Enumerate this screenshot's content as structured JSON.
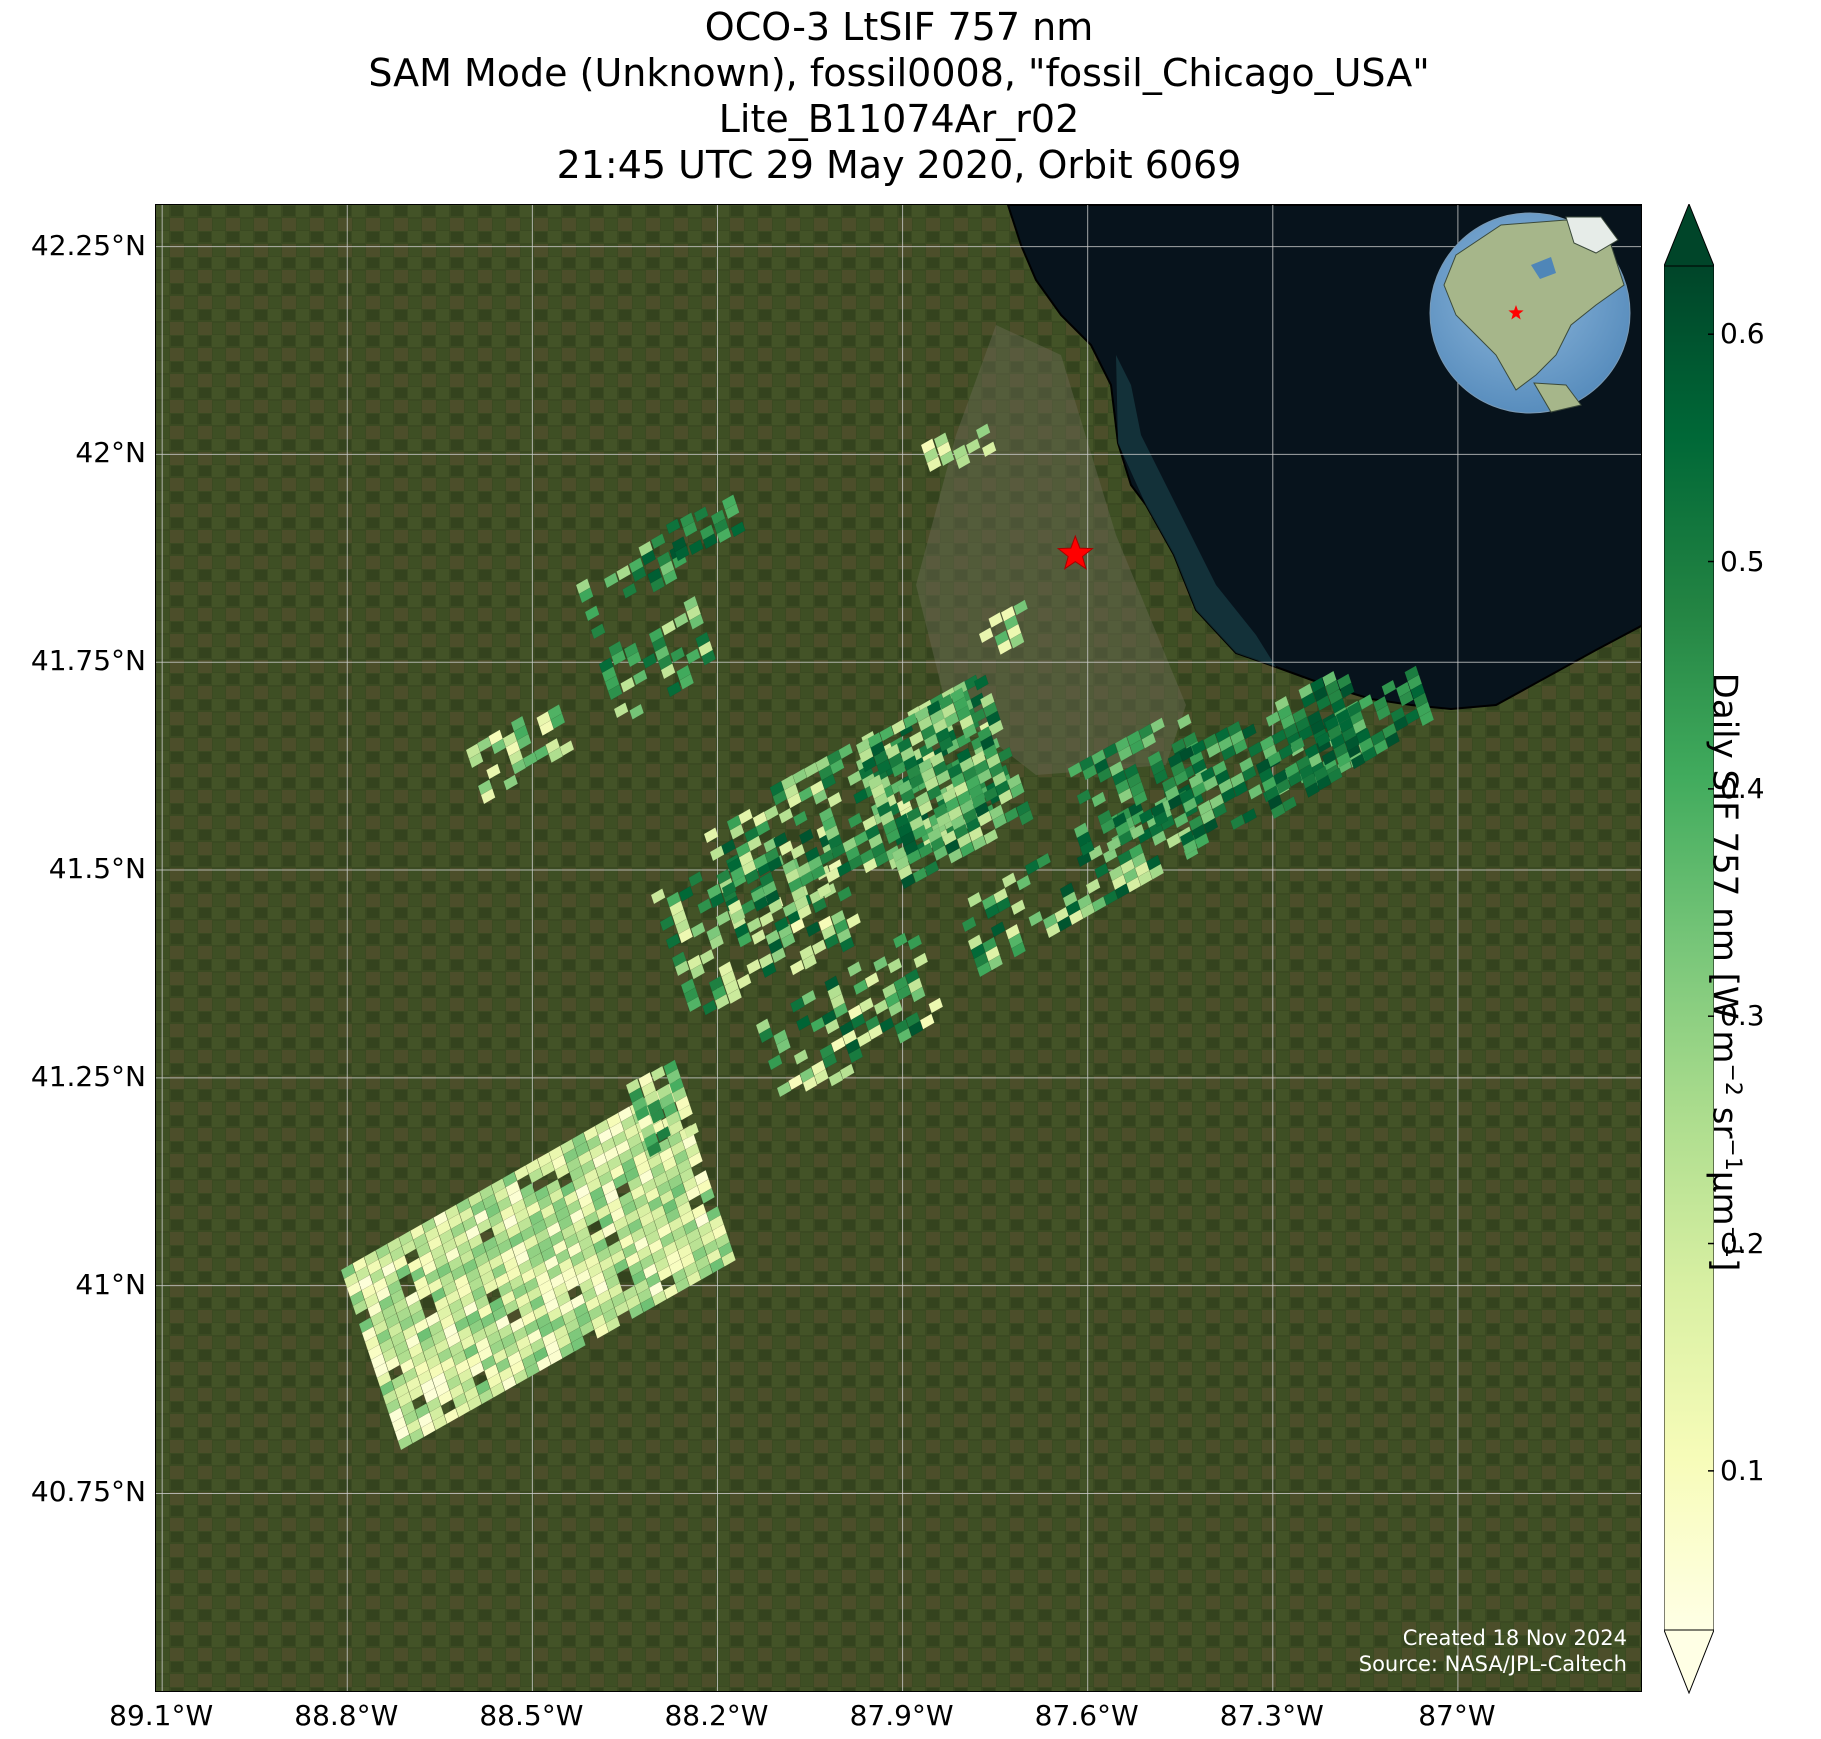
{
  "title_lines": [
    "OCO-3 LtSIF 757 nm",
    "SAM Mode (Unknown), fossil0008, \"fossil_Chicago_USA\"",
    "Lite_B11074Ar_r02",
    "21:45 UTC 29 May 2020, Orbit 6069"
  ],
  "map": {
    "lat_labels": [
      "42.25°N",
      "42°N",
      "41.75°N",
      "41.5°N",
      "41.25°N",
      "41°N",
      "40.75°N"
    ],
    "lon_labels": [
      "89.1°W",
      "88.8°W",
      "88.5°W",
      "88.2°W",
      "87.9°W",
      "87.6°W",
      "87.3°W",
      "87°W"
    ],
    "lat_values": [
      42.25,
      42.0,
      41.75,
      41.5,
      41.25,
      41.0,
      40.75
    ],
    "lon_values": [
      -89.1,
      -88.8,
      -88.5,
      -88.2,
      -87.9,
      -87.6,
      -87.3,
      -87.0
    ],
    "extent": {
      "lon_min": -89.11,
      "lon_max": -86.7,
      "lat_min": 40.51,
      "lat_max": 42.3
    },
    "target": {
      "lon": -87.62,
      "lat": 41.88,
      "marker": "red-star"
    },
    "grid": true,
    "inset": "globe centered on North America with red star at target",
    "colors": {
      "land": "#3a4a22",
      "lake": "#07131c",
      "marker": "#ff0000",
      "grid": "#cccccc"
    }
  },
  "credit_lines": [
    "Created 18 Nov 2024",
    "Source: NASA/JPL-Caltech"
  ],
  "colorbar": {
    "label_main": "Daily SIF 757 nm [W m",
    "label_sup1": "−2",
    "label_mid1": " sr",
    "label_sup2": "−1",
    "label_mid2": "μm",
    "label_sup3": "−1",
    "label_end": "]",
    "tick_labels": [
      "0.6",
      "0.5",
      "0.4",
      "0.3",
      "0.2",
      "0.1"
    ],
    "tick_values": [
      0.6,
      0.5,
      0.4,
      0.3,
      0.2,
      0.1
    ],
    "range": [
      0.03,
      0.63
    ],
    "extend": "both",
    "colormap": "YlGn",
    "colormap_stops": [
      "#ffffe5",
      "#f7fcb9",
      "#d9f0a3",
      "#addd8e",
      "#78c679",
      "#41ab5d",
      "#238443",
      "#006837",
      "#004529"
    ]
  }
}
